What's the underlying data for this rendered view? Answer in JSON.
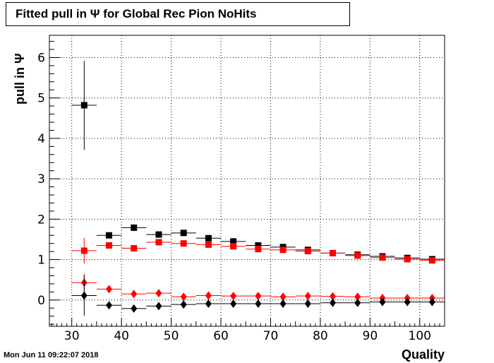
{
  "title": "Fitted pull in  Ψ  for Global Rec Pion NoHits",
  "timestamp": "Mon Jun 11 09:22:07 2018",
  "chart_data": {
    "type": "scatter",
    "xlabel": "Quality",
    "ylabel": "pull in  Ψ",
    "xlim": [
      25.5,
      105
    ],
    "ylim": [
      -0.65,
      6.55
    ],
    "x_ticks": [
      30,
      40,
      50,
      60,
      70,
      80,
      90,
      100
    ],
    "y_ticks": [
      0,
      1,
      2,
      3,
      4,
      5,
      6
    ],
    "grid": true,
    "bin_half_width": 2.5,
    "series": [
      {
        "color": "#000000",
        "marker": "square",
        "x": [
          32.5,
          37.5,
          42.5,
          47.5,
          52.5,
          57.5,
          62.5,
          67.5,
          72.5,
          77.5,
          82.5,
          87.5,
          92.5,
          97.5,
          102.5
        ],
        "y": [
          4.82,
          1.6,
          1.79,
          1.62,
          1.66,
          1.53,
          1.45,
          1.35,
          1.31,
          1.24,
          1.16,
          1.12,
          1.08,
          1.04,
          1.01
        ],
        "yerr": [
          1.1,
          0.08,
          0.05,
          0.04,
          0.03,
          0.03,
          0.03,
          0.02,
          0.02,
          0.02,
          0.02,
          0.02,
          0.02,
          0.02,
          0.02
        ]
      },
      {
        "color": "#ff0000",
        "marker": "square",
        "x": [
          32.5,
          37.5,
          42.5,
          47.5,
          52.5,
          57.5,
          62.5,
          67.5,
          72.5,
          77.5,
          82.5,
          87.5,
          92.5,
          97.5,
          102.5
        ],
        "y": [
          1.22,
          1.35,
          1.28,
          1.43,
          1.4,
          1.37,
          1.33,
          1.26,
          1.24,
          1.21,
          1.16,
          1.1,
          1.05,
          1.01,
          0.98
        ],
        "yerr": [
          0.32,
          0.07,
          0.05,
          0.04,
          0.03,
          0.03,
          0.03,
          0.02,
          0.02,
          0.02,
          0.02,
          0.02,
          0.02,
          0.02,
          0.02
        ]
      },
      {
        "color": "#ff0000",
        "marker": "diamond",
        "x": [
          32.5,
          37.5,
          42.5,
          47.5,
          52.5,
          57.5,
          62.5,
          67.5,
          72.5,
          77.5,
          82.5,
          87.5,
          92.5,
          97.5,
          102.5
        ],
        "y": [
          0.43,
          0.27,
          0.15,
          0.17,
          0.08,
          0.11,
          0.1,
          0.1,
          0.08,
          0.1,
          0.09,
          0.08,
          0.05,
          0.05,
          0.05
        ],
        "yerr": [
          0.22,
          0.05,
          0.03,
          0.03,
          0.02,
          0.02,
          0.02,
          0.02,
          0.02,
          0.02,
          0.02,
          0.02,
          0.02,
          0.02,
          0.02
        ]
      },
      {
        "color": "#000000",
        "marker": "diamond",
        "x": [
          32.5,
          37.5,
          42.5,
          47.5,
          52.5,
          57.5,
          62.5,
          67.5,
          72.5,
          77.5,
          82.5,
          87.5,
          92.5,
          97.5,
          102.5
        ],
        "y": [
          0.11,
          -0.13,
          -0.21,
          -0.15,
          -0.11,
          -0.09,
          -0.09,
          -0.09,
          -0.09,
          -0.09,
          -0.07,
          -0.07,
          -0.05,
          -0.05,
          -0.05
        ],
        "yerr": [
          0.5,
          0.04,
          0.03,
          0.03,
          0.02,
          0.02,
          0.02,
          0.02,
          0.02,
          0.02,
          0.02,
          0.02,
          0.02,
          0.02,
          0.02
        ]
      }
    ]
  }
}
